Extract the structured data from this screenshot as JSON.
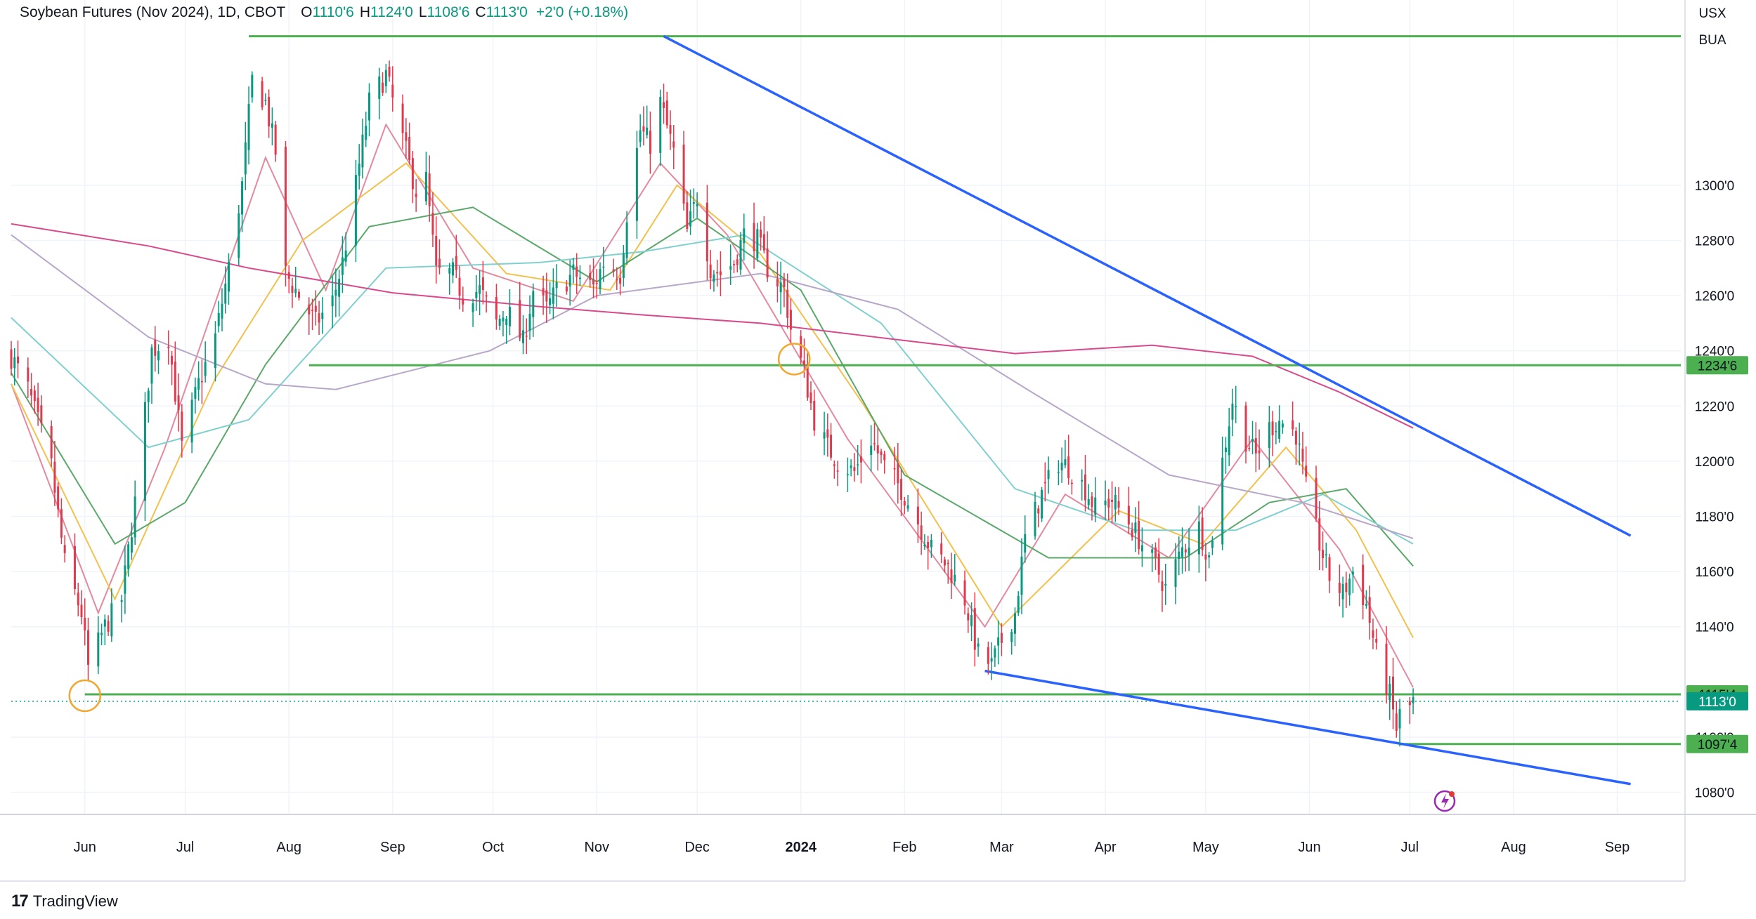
{
  "header": {
    "symbol": "Soybean Futures (Nov 2024), 1D, CBOT",
    "open_label": "O",
    "open": "1110'6",
    "high_label": "H",
    "high": "1124'0",
    "low_label": "L",
    "low": "1108'6",
    "close_label": "C",
    "close": "1113'0",
    "change": "+2'0 (+0.18%)"
  },
  "price_scale": {
    "top_labels": [
      "USX",
      "BUA"
    ]
  },
  "branding": {
    "name": "TradingView"
  },
  "colors": {
    "up": "#089981",
    "down": "#e03a4e",
    "level": "#4caf50",
    "trendline": "#2962ff",
    "marker": "#f0a830"
  },
  "chart_data": {
    "type": "candlestick",
    "ylim": [
      1072,
      1360
    ],
    "y_ticks": [
      1080,
      1100,
      1140,
      1160,
      1180,
      1200,
      1220,
      1240,
      1260,
      1280,
      1300
    ],
    "y_tick_labels": [
      "1080'0",
      "1100'0",
      "1140'0",
      "1160'0",
      "1180'0",
      "1200'0",
      "1220'0",
      "1240'0",
      "1260'0",
      "1280'0",
      "1300'0"
    ],
    "x_ticks": [
      {
        "date": "2023-06-01",
        "label": "Jun",
        "bold": false
      },
      {
        "date": "2023-07-01",
        "label": "Jul",
        "bold": false
      },
      {
        "date": "2023-08-01",
        "label": "Aug",
        "bold": false
      },
      {
        "date": "2023-09-01",
        "label": "Sep",
        "bold": false
      },
      {
        "date": "2023-10-01",
        "label": "Oct",
        "bold": false
      },
      {
        "date": "2023-11-01",
        "label": "Nov",
        "bold": false
      },
      {
        "date": "2023-12-01",
        "label": "Dec",
        "bold": false
      },
      {
        "date": "2024-01-01",
        "label": "2024",
        "bold": true
      },
      {
        "date": "2024-02-01",
        "label": "Feb",
        "bold": false
      },
      {
        "date": "2024-03-01",
        "label": "Mar",
        "bold": false
      },
      {
        "date": "2024-04-01",
        "label": "Apr",
        "bold": false
      },
      {
        "date": "2024-05-01",
        "label": "May",
        "bold": false
      },
      {
        "date": "2024-06-01",
        "label": "Jun",
        "bold": false
      },
      {
        "date": "2024-07-01",
        "label": "Jul",
        "bold": false
      },
      {
        "date": "2024-08-01",
        "label": "Aug",
        "bold": false
      },
      {
        "date": "2024-09-01",
        "label": "Sep",
        "bold": false
      }
    ],
    "price_keypoints": [
      [
        "2023-05-10",
        1238
      ],
      [
        "2023-05-15",
        1226
      ],
      [
        "2023-05-22",
        1198
      ],
      [
        "2023-05-26",
        1163
      ],
      [
        "2023-05-31",
        1145
      ],
      [
        "2023-06-02",
        1125
      ],
      [
        "2023-06-07",
        1140
      ],
      [
        "2023-06-12",
        1150
      ],
      [
        "2023-06-16",
        1185
      ],
      [
        "2023-06-21",
        1240
      ],
      [
        "2023-06-26",
        1245
      ],
      [
        "2023-06-30",
        1205
      ],
      [
        "2023-07-05",
        1228
      ],
      [
        "2023-07-10",
        1245
      ],
      [
        "2023-07-14",
        1270
      ],
      [
        "2023-07-18",
        1300
      ],
      [
        "2023-07-21",
        1338
      ],
      [
        "2023-07-25",
        1330
      ],
      [
        "2023-07-28",
        1312
      ],
      [
        "2023-07-31",
        1268
      ],
      [
        "2023-08-04",
        1260
      ],
      [
        "2023-08-09",
        1250
      ],
      [
        "2023-08-14",
        1258
      ],
      [
        "2023-08-17",
        1272
      ],
      [
        "2023-08-21",
        1300
      ],
      [
        "2023-08-25",
        1330
      ],
      [
        "2023-08-30",
        1340
      ],
      [
        "2023-09-05",
        1312
      ],
      [
        "2023-09-08",
        1298
      ],
      [
        "2023-09-11",
        1302
      ],
      [
        "2023-09-14",
        1268
      ],
      [
        "2023-09-19",
        1268
      ],
      [
        "2023-09-22",
        1260
      ],
      [
        "2023-09-27",
        1262
      ],
      [
        "2023-10-02",
        1250
      ],
      [
        "2023-10-05",
        1255
      ],
      [
        "2023-10-10",
        1243
      ],
      [
        "2023-10-13",
        1262
      ],
      [
        "2023-10-17",
        1255
      ],
      [
        "2023-10-20",
        1262
      ],
      [
        "2023-10-25",
        1268
      ],
      [
        "2023-10-31",
        1263
      ],
      [
        "2023-11-03",
        1272
      ],
      [
        "2023-11-08",
        1268
      ],
      [
        "2023-11-10",
        1290
      ],
      [
        "2023-11-14",
        1320
      ],
      [
        "2023-11-17",
        1315
      ],
      [
        "2023-11-20",
        1330
      ],
      [
        "2023-11-24",
        1312
      ],
      [
        "2023-11-28",
        1283
      ],
      [
        "2023-12-01",
        1296
      ],
      [
        "2023-12-05",
        1270
      ],
      [
        "2023-12-08",
        1268
      ],
      [
        "2023-12-12",
        1272
      ],
      [
        "2023-12-15",
        1282
      ],
      [
        "2023-12-19",
        1280
      ],
      [
        "2023-12-22",
        1270
      ],
      [
        "2023-12-27",
        1262
      ],
      [
        "2023-12-29",
        1248
      ],
      [
        "2024-01-02",
        1232
      ],
      [
        "2024-01-05",
        1215
      ],
      [
        "2024-01-09",
        1205
      ],
      [
        "2024-01-12",
        1200
      ],
      [
        "2024-01-17",
        1196
      ],
      [
        "2024-01-22",
        1208
      ],
      [
        "2024-01-26",
        1198
      ],
      [
        "2024-01-31",
        1190
      ],
      [
        "2024-02-05",
        1178
      ],
      [
        "2024-02-09",
        1168
      ],
      [
        "2024-02-14",
        1162
      ],
      [
        "2024-02-19",
        1150
      ],
      [
        "2024-02-23",
        1130
      ],
      [
        "2024-02-27",
        1126
      ],
      [
        "2024-03-01",
        1135
      ],
      [
        "2024-03-05",
        1145
      ],
      [
        "2024-03-08",
        1172
      ],
      [
        "2024-03-13",
        1188
      ],
      [
        "2024-03-18",
        1200
      ],
      [
        "2024-03-21",
        1198
      ],
      [
        "2024-03-26",
        1190
      ],
      [
        "2024-03-29",
        1183
      ],
      [
        "2024-04-03",
        1186
      ],
      [
        "2024-04-08",
        1178
      ],
      [
        "2024-04-11",
        1172
      ],
      [
        "2024-04-16",
        1162
      ],
      [
        "2024-04-19",
        1154
      ],
      [
        "2024-04-24",
        1168
      ],
      [
        "2024-04-29",
        1176
      ],
      [
        "2024-05-02",
        1165
      ],
      [
        "2024-05-06",
        1200
      ],
      [
        "2024-05-09",
        1222
      ],
      [
        "2024-05-13",
        1208
      ],
      [
        "2024-05-16",
        1202
      ],
      [
        "2024-05-20",
        1212
      ],
      [
        "2024-05-23",
        1215
      ],
      [
        "2024-05-28",
        1210
      ],
      [
        "2024-05-31",
        1190
      ],
      [
        "2024-06-04",
        1170
      ],
      [
        "2024-06-07",
        1158
      ],
      [
        "2024-06-11",
        1152
      ],
      [
        "2024-06-14",
        1160
      ],
      [
        "2024-06-18",
        1148
      ],
      [
        "2024-06-21",
        1130
      ],
      [
        "2024-06-25",
        1115
      ],
      [
        "2024-06-27",
        1103
      ],
      [
        "2024-06-28",
        1108
      ],
      [
        "2024-07-01",
        1111
      ],
      [
        "2024-07-02",
        1113
      ]
    ],
    "horizontal_levels": [
      {
        "price": 1354,
        "start": "2023-07-20",
        "label": ""
      },
      {
        "price": 1234.75,
        "start": "2023-08-07",
        "label": "1234'6"
      },
      {
        "price": 1115.5,
        "start": "2023-06-01",
        "label": "1115'4"
      },
      {
        "price": 1097.5,
        "start": "2024-06-28",
        "label": "1097'4"
      }
    ],
    "last_price": {
      "price": 1113,
      "label": "1113'0"
    },
    "trendlines": [
      {
        "from": [
          "2023-11-21",
          1354
        ],
        "to": [
          "2024-09-05",
          1173
        ]
      },
      {
        "from": [
          "2024-02-25",
          1124
        ],
        "to": [
          "2024-09-05",
          1083
        ]
      }
    ],
    "circle_markers": [
      [
        "2023-06-01",
        1115
      ],
      [
        "2023-12-30",
        1237
      ]
    ],
    "moving_averages": [
      {
        "color": "#e38aa0",
        "points": [
          [
            "2023-05-10",
            1228
          ],
          [
            "2023-06-05",
            1145
          ],
          [
            "2023-06-25",
            1205
          ],
          [
            "2023-07-25",
            1310
          ],
          [
            "2023-08-12",
            1262
          ],
          [
            "2023-08-30",
            1322
          ],
          [
            "2023-09-25",
            1270
          ],
          [
            "2023-10-25",
            1258
          ],
          [
            "2023-11-20",
            1308
          ],
          [
            "2023-12-10",
            1282
          ],
          [
            "2024-01-15",
            1208
          ],
          [
            "2024-02-25",
            1140
          ],
          [
            "2024-03-20",
            1188
          ],
          [
            "2024-04-20",
            1165
          ],
          [
            "2024-05-15",
            1208
          ],
          [
            "2024-06-10",
            1168
          ],
          [
            "2024-07-02",
            1118
          ]
        ]
      },
      {
        "color": "#f2c14e",
        "points": [
          [
            "2023-05-10",
            1228
          ],
          [
            "2023-06-10",
            1150
          ],
          [
            "2023-07-10",
            1230
          ],
          [
            "2023-08-05",
            1280
          ],
          [
            "2023-09-05",
            1308
          ],
          [
            "2023-10-05",
            1268
          ],
          [
            "2023-11-05",
            1262
          ],
          [
            "2023-11-25",
            1300
          ],
          [
            "2023-12-20",
            1275
          ],
          [
            "2024-01-20",
            1220
          ],
          [
            "2024-03-01",
            1140
          ],
          [
            "2024-04-05",
            1182
          ],
          [
            "2024-04-30",
            1170
          ],
          [
            "2024-05-25",
            1205
          ],
          [
            "2024-06-15",
            1175
          ],
          [
            "2024-07-02",
            1136
          ]
        ]
      },
      {
        "color": "#5aa86a",
        "points": [
          [
            "2023-05-10",
            1232
          ],
          [
            "2023-06-10",
            1170
          ],
          [
            "2023-07-01",
            1185
          ],
          [
            "2023-07-25",
            1235
          ],
          [
            "2023-08-25",
            1285
          ],
          [
            "2023-09-25",
            1292
          ],
          [
            "2023-11-01",
            1265
          ],
          [
            "2023-12-01",
            1288
          ],
          [
            "2024-01-01",
            1262
          ],
          [
            "2024-02-01",
            1195
          ],
          [
            "2024-03-15",
            1165
          ],
          [
            "2024-04-25",
            1165
          ],
          [
            "2024-05-20",
            1185
          ],
          [
            "2024-06-12",
            1190
          ],
          [
            "2024-07-02",
            1162
          ]
        ]
      },
      {
        "color": "#80d0cf",
        "points": [
          [
            "2023-05-10",
            1252
          ],
          [
            "2023-06-20",
            1205
          ],
          [
            "2023-07-20",
            1215
          ],
          [
            "2023-08-30",
            1270
          ],
          [
            "2023-10-15",
            1272
          ],
          [
            "2023-11-15",
            1276
          ],
          [
            "2023-12-15",
            1282
          ],
          [
            "2024-01-25",
            1250
          ],
          [
            "2024-03-05",
            1190
          ],
          [
            "2024-04-10",
            1175
          ],
          [
            "2024-05-10",
            1175
          ],
          [
            "2024-06-05",
            1188
          ],
          [
            "2024-07-02",
            1170
          ]
        ]
      },
      {
        "color": "#b8a7c9",
        "points": [
          [
            "2023-05-10",
            1282
          ],
          [
            "2023-06-20",
            1245
          ],
          [
            "2023-07-25",
            1228
          ],
          [
            "2023-08-15",
            1226
          ],
          [
            "2023-09-30",
            1240
          ],
          [
            "2023-11-01",
            1260
          ],
          [
            "2023-12-20",
            1268
          ],
          [
            "2024-01-30",
            1255
          ],
          [
            "2024-03-10",
            1225
          ],
          [
            "2024-04-20",
            1195
          ],
          [
            "2024-05-30",
            1185
          ],
          [
            "2024-07-02",
            1172
          ]
        ]
      },
      {
        "color": "#d84a8c",
        "points": [
          [
            "2023-05-10",
            1286
          ],
          [
            "2023-06-20",
            1278
          ],
          [
            "2023-07-20",
            1270
          ],
          [
            "2023-09-01",
            1261
          ],
          [
            "2023-10-15",
            1256
          ],
          [
            "2023-11-15",
            1253
          ],
          [
            "2023-12-20",
            1250
          ],
          [
            "2024-01-30",
            1244
          ],
          [
            "2024-03-05",
            1239
          ],
          [
            "2024-04-15",
            1242
          ],
          [
            "2024-05-15",
            1238
          ],
          [
            "2024-06-10",
            1225
          ],
          [
            "2024-07-02",
            1212
          ]
        ]
      }
    ]
  }
}
